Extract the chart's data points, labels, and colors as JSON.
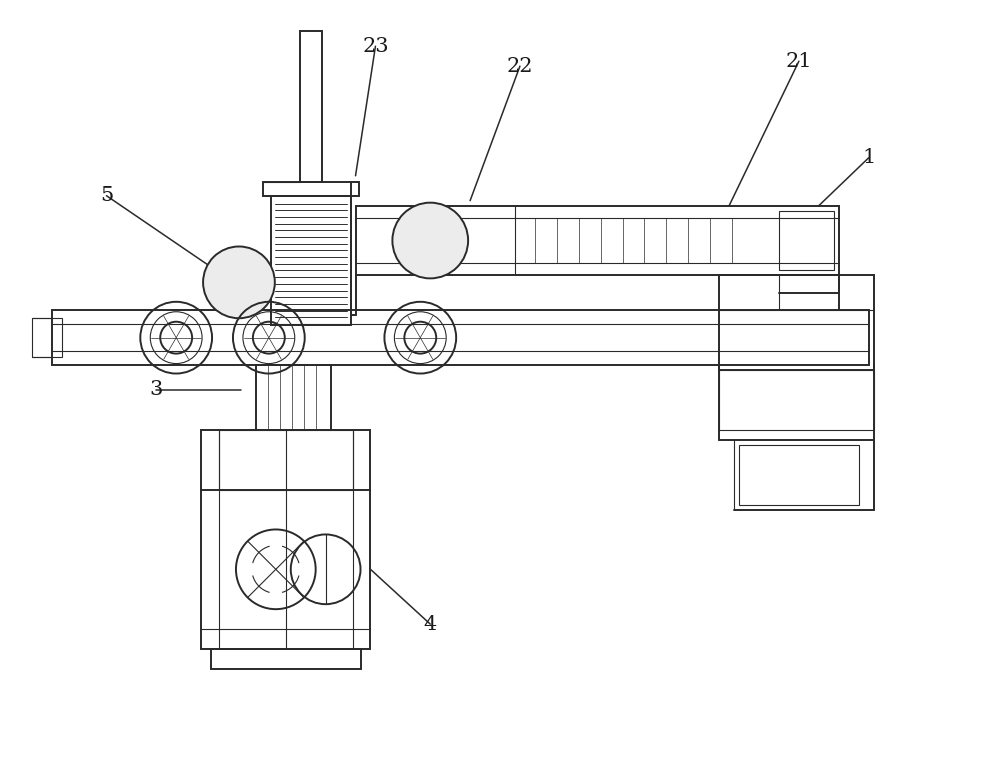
{
  "bg_color": "#ffffff",
  "lc": "#2a2a2a",
  "lw": 1.4,
  "lw2": 0.8,
  "lw3": 0.5,
  "figsize": [
    10.0,
    7.64
  ],
  "dpi": 100
}
